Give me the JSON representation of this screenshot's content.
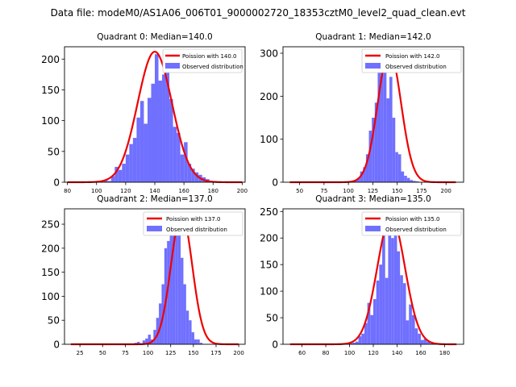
{
  "suptitle": "Data file: modeM0/AS1A06_006T01_9000002720_18353cztM0_level2_quad_clean.evt",
  "colors": {
    "fit_line": "#ee0000",
    "histogram": "#7070ff",
    "axes": "#000000"
  },
  "chart_data": [
    {
      "type": "bar+line",
      "title": "Quadrant 0: Median=140.0",
      "xlim": [
        78,
        202
      ],
      "ylim": [
        0,
        220
      ],
      "xticks": [
        80,
        100,
        120,
        140,
        160,
        180,
        200
      ],
      "yticks": [
        0,
        50,
        100,
        150,
        200
      ],
      "legend": {
        "position": "top-right",
        "line_label": "Poission with 140.0",
        "hist_label": "Observed distribution"
      },
      "hist": {
        "bin_start": 100,
        "bin_width": 2.5,
        "values": [
          0,
          0,
          3,
          2,
          10,
          25,
          20,
          30,
          45,
          62,
          72,
          105,
          132,
          95,
          137,
          160,
          208,
          165,
          175,
          180,
          135,
          90,
          80,
          45,
          65,
          30,
          22,
          16,
          12,
          8,
          5,
          2,
          2,
          1
        ]
      },
      "fit": {
        "mean": 140.0,
        "peak": 212,
        "sigma": 11.8,
        "xmin": 80,
        "xmax": 200
      }
    },
    {
      "type": "bar+line",
      "title": "Quadrant 1: Median=142.0",
      "xlim": [
        33,
        218
      ],
      "ylim": [
        0,
        315
      ],
      "xticks": [
        50,
        75,
        100,
        125,
        150,
        175,
        200
      ],
      "yticks": [
        0,
        100,
        200,
        300
      ],
      "legend": {
        "position": "top-right",
        "line_label": "Poission with 142.0",
        "hist_label": "Observed distribution"
      },
      "hist": {
        "bin_start": 100,
        "bin_width": 3,
        "values": [
          1,
          3,
          5,
          10,
          25,
          35,
          65,
          120,
          150,
          185,
          260,
          260,
          300,
          195,
          245,
          150,
          70,
          65,
          25,
          15,
          10,
          5,
          3,
          2
        ]
      },
      "fit": {
        "mean": 142.0,
        "peak": 305,
        "sigma": 11.9,
        "xmin": 40,
        "xmax": 210
      }
    },
    {
      "type": "bar+line",
      "title": "Quadrant 2: Median=137.0",
      "xlim": [
        8,
        207
      ],
      "ylim": [
        0,
        282
      ],
      "xticks": [
        25,
        50,
        75,
        100,
        125,
        150,
        175,
        200
      ],
      "yticks": [
        0,
        50,
        100,
        150,
        200,
        250
      ],
      "legend": {
        "position": "top-right",
        "line_label": "Poission with 137.0",
        "hist_label": "Observed distribution"
      },
      "hist": {
        "bin_start": 85,
        "bin_width": 3,
        "values": [
          3,
          5,
          2,
          8,
          12,
          20,
          10,
          30,
          55,
          85,
          125,
          200,
          215,
          240,
          250,
          235,
          270,
          180,
          125,
          70,
          50,
          25,
          10,
          10,
          3
        ]
      },
      "fit": {
        "mean": 137.0,
        "peak": 272,
        "sigma": 11.7,
        "xmin": 15,
        "xmax": 200
      }
    },
    {
      "type": "bar+line",
      "title": "Quadrant 3: Median=135.0",
      "xlim": [
        44,
        196
      ],
      "ylim": [
        0,
        255
      ],
      "xticks": [
        60,
        80,
        100,
        120,
        140,
        160,
        180
      ],
      "yticks": [
        0,
        50,
        100,
        150,
        200,
        250
      ],
      "legend": {
        "position": "top-right",
        "line_label": "Poission with 135.0",
        "hist_label": "Observed distribution"
      },
      "hist": {
        "bin_start": 100,
        "bin_width": 2.5,
        "values": [
          2,
          3,
          5,
          15,
          20,
          40,
          78,
          55,
          85,
          120,
          150,
          240,
          125,
          210,
          200,
          220,
          175,
          130,
          115,
          45,
          75,
          55,
          30,
          20,
          8,
          10,
          5,
          2,
          2,
          1
        ]
      },
      "fit": {
        "mean": 135.0,
        "peak": 240,
        "sigma": 11.6,
        "xmin": 50,
        "xmax": 190
      }
    }
  ]
}
